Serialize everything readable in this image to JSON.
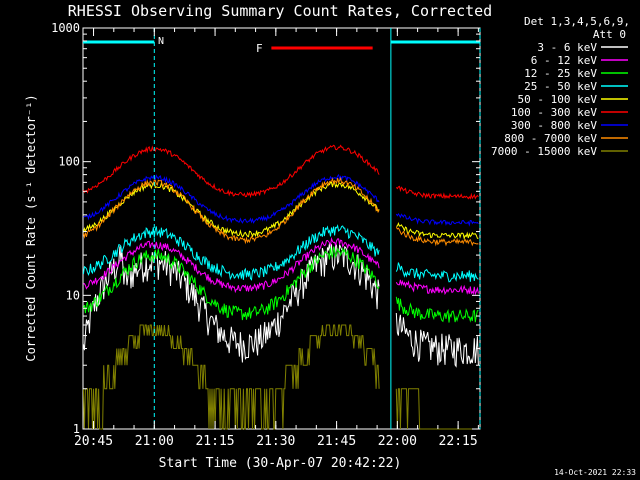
{
  "chart_data": {
    "type": "line",
    "title": "RHESSI Observing Summary Count Rates, Corrected",
    "xlabel": "Start Time (30-Apr-07 20:42:22)",
    "ylabel": "Corrected Count Rate (s⁻¹ detector⁻¹)",
    "yscale": "log",
    "ylim": [
      1,
      1000
    ],
    "xlim_minutes": [
      0,
      98
    ],
    "x_ticks": [
      {
        "label": "20:45",
        "minute": 2.6
      },
      {
        "label": "21:00",
        "minute": 17.6
      },
      {
        "label": "21:15",
        "minute": 32.6
      },
      {
        "label": "21:30",
        "minute": 47.6
      },
      {
        "label": "21:45",
        "minute": 62.6
      },
      {
        "label": "22:00",
        "minute": 77.6
      },
      {
        "label": "22:15",
        "minute": 92.6
      }
    ],
    "y_ticks": [
      {
        "label": "1",
        "value": 1
      },
      {
        "label": "10",
        "value": 10
      },
      {
        "label": "100",
        "value": 100
      },
      {
        "label": "1000",
        "value": 1000
      }
    ],
    "legend_header": [
      "Det 1,3,4,5,6,9,",
      "Att 0"
    ],
    "series": [
      {
        "name": "3 - 6 keV",
        "color": "#ffffff",
        "base": 4.0,
        "peaks": [
          18,
          20
        ],
        "noise": 0.28
      },
      {
        "name": "6 - 12 keV",
        "color": "#ff00ff",
        "base": 11,
        "peaks": [
          24,
          25
        ],
        "noise": 0.07
      },
      {
        "name": "12 - 25 keV",
        "color": "#00ff00",
        "base": 7,
        "peaks": [
          20,
          21
        ],
        "noise": 0.12
      },
      {
        "name": "25 - 50 keV",
        "color": "#00ffff",
        "base": 14,
        "peaks": [
          30,
          31
        ],
        "noise": 0.1
      },
      {
        "name": "50 - 100 keV",
        "color": "#ffff00",
        "base": 28,
        "peaks": [
          67,
          68
        ],
        "noise": 0.05
      },
      {
        "name": "100 - 300 keV",
        "color": "#ff0000",
        "base": 55,
        "peaks": [
          125,
          128
        ],
        "noise": 0.04
      },
      {
        "name": "300 - 800 keV",
        "color": "#0000ff",
        "base": 35,
        "peaks": [
          76,
          77
        ],
        "noise": 0.04
      },
      {
        "name": "800 - 7000 keV",
        "color": "#ff8c00",
        "base": 25,
        "peaks": [
          70,
          72
        ],
        "noise": 0.05
      },
      {
        "name": "7000 - 15000 keV",
        "color": "#808000",
        "base": 1.4,
        "peaks": [
          6,
          6
        ],
        "noise": 0.0
      }
    ],
    "annotations": {
      "night_label": "N",
      "flare_label": "F",
      "night_periods_minutes": [
        [
          0,
          17.6
        ],
        [
          76,
          98
        ]
      ],
      "flare_period_minutes": [
        46.5,
        71.5
      ]
    },
    "peak_minutes": [
      17.6,
      62.6
    ],
    "gap_minutes": [
      73.2,
      77.2
    ]
  },
  "footer": {
    "timestamp": "14-Oct-2021 22:33"
  }
}
